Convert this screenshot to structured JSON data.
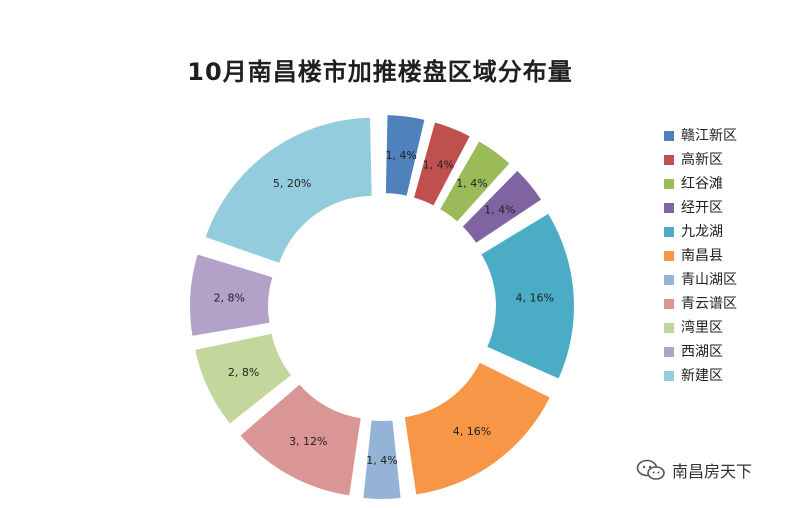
{
  "chart_data": {
    "type": "pie",
    "subtype": "donut",
    "title": "10月南昌楼市加推楼盘区域分布量",
    "legend_position": "right",
    "slices": [
      {
        "name": "赣江新区",
        "count": 1,
        "percent": 4,
        "label": "1, 4%",
        "color": "#4f81bd"
      },
      {
        "name": "高新区",
        "count": 1,
        "percent": 4,
        "label": "1, 4%",
        "color": "#c0504d"
      },
      {
        "name": "红谷滩",
        "count": 1,
        "percent": 4,
        "label": "1, 4%",
        "color": "#9bbb59"
      },
      {
        "name": "经开区",
        "count": 1,
        "percent": 4,
        "label": "1, 4%",
        "color": "#8064a2"
      },
      {
        "name": "九龙湖",
        "count": 4,
        "percent": 16,
        "label": "4, 16%",
        "color": "#4bacc6"
      },
      {
        "name": "南昌县",
        "count": 4,
        "percent": 16,
        "label": "4, 16%",
        "color": "#f79646"
      },
      {
        "name": "青山湖区",
        "count": 1,
        "percent": 4,
        "label": "1, 4%",
        "color": "#95b3d7"
      },
      {
        "name": "青云谱区",
        "count": 3,
        "percent": 12,
        "label": "3, 12%",
        "color": "#d99694"
      },
      {
        "name": "湾里区",
        "count": 2,
        "percent": 8,
        "label": "2, 8%",
        "color": "#c3d69b"
      },
      {
        "name": "西湖区",
        "count": 2,
        "percent": 8,
        "label": "2, 8%",
        "color": "#b2a2c7"
      },
      {
        "name": "新建区",
        "count": 5,
        "percent": 20,
        "label": "5, 20%",
        "color": "#93cddd"
      }
    ]
  },
  "watermark": {
    "text": "南昌房天下",
    "icon": "wechat-icon"
  }
}
